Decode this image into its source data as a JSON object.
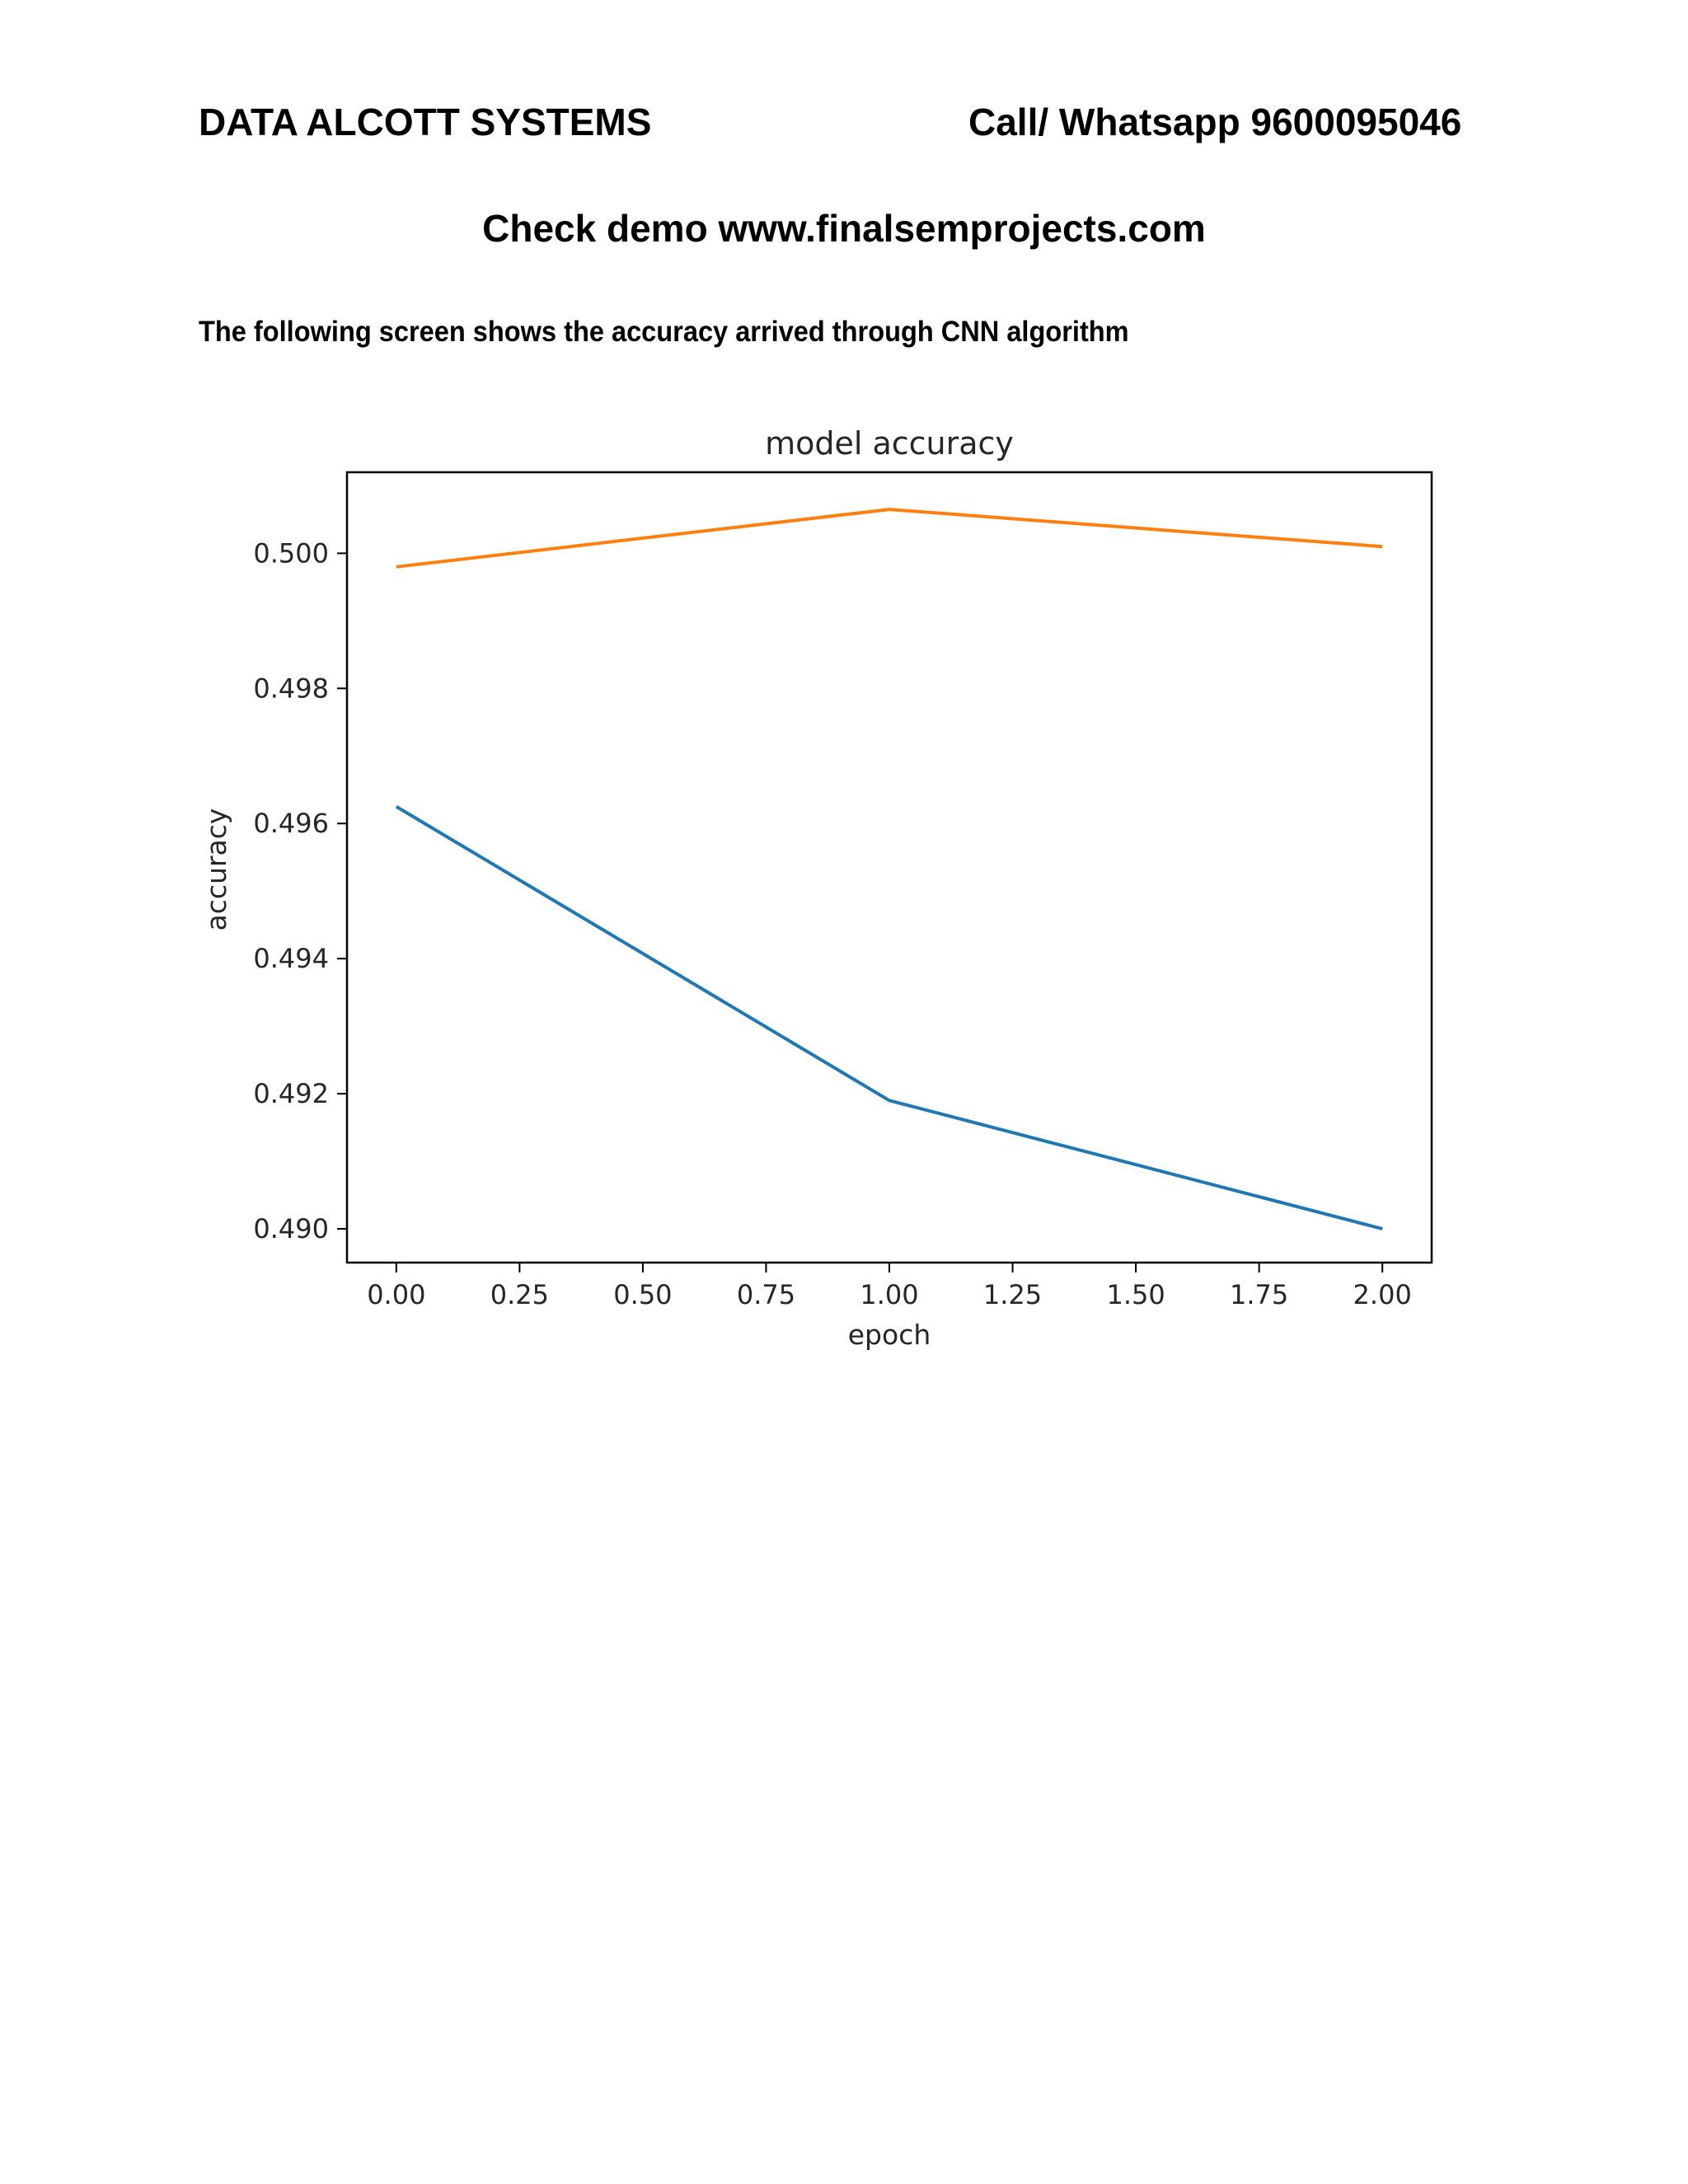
{
  "header": {
    "company": "DATA ALCOTT SYSTEMS",
    "contact": "Call/ Whatsapp 9600095046",
    "demo": "Check demo www.finalsemprojects.com"
  },
  "caption": "The following screen shows the accuracy arrived through CNN algorithm",
  "chart_data": {
    "type": "line",
    "title": "model accuracy",
    "xlabel": "epoch",
    "ylabel": "accuracy",
    "xlim": [
      -0.1,
      2.1
    ],
    "ylim": [
      0.4895,
      0.5012
    ],
    "x_ticks": [
      0.0,
      0.25,
      0.5,
      0.75,
      1.0,
      1.25,
      1.5,
      1.75,
      2.0
    ],
    "x_tick_labels": [
      "0.00",
      "0.25",
      "0.50",
      "0.75",
      "1.00",
      "1.25",
      "1.50",
      "1.75",
      "2.00"
    ],
    "y_ticks": [
      0.49,
      0.492,
      0.494,
      0.496,
      0.498,
      0.5
    ],
    "y_tick_labels": [
      "0.490",
      "0.492",
      "0.494",
      "0.496",
      "0.498",
      "0.500"
    ],
    "grid": false,
    "series": [
      {
        "color": "#1f77b4",
        "x": [
          0,
          1,
          2
        ],
        "y": [
          0.49625,
          0.4919,
          0.49
        ]
      },
      {
        "color": "#ff7f0e",
        "x": [
          0,
          1,
          2
        ],
        "y": [
          0.4998,
          0.50065,
          0.5001
        ]
      }
    ]
  }
}
